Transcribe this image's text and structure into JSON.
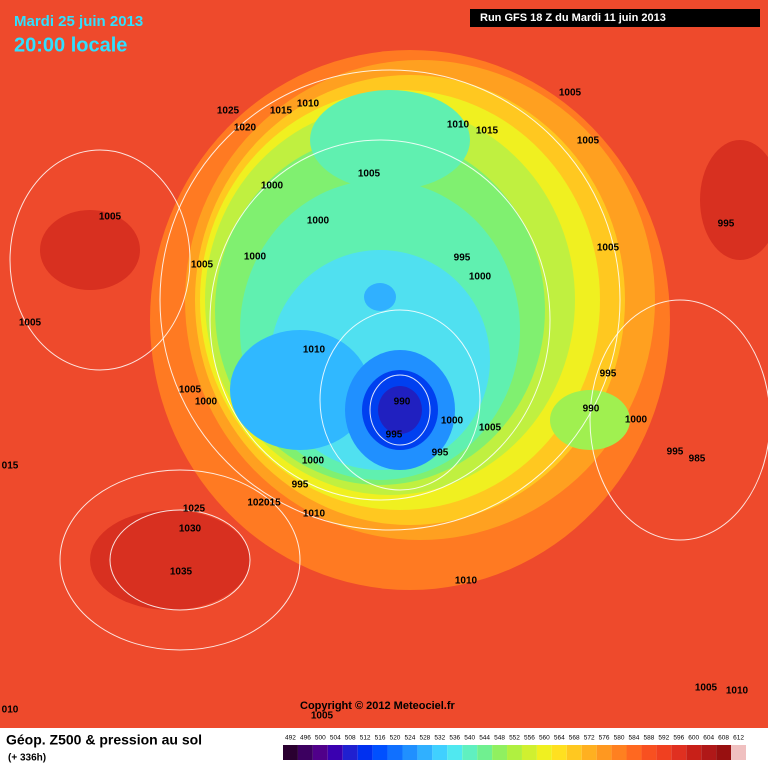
{
  "header": {
    "date": "Mardi 25 juin 2013",
    "time": "20:00 locale",
    "run": "Run GFS 18 Z du Mardi 11 juin 2013"
  },
  "isobar_labels": [
    "1005",
    "1005",
    "1025",
    "1015",
    "1010",
    "1020",
    "1010",
    "1015",
    "1000",
    "1005",
    "1000",
    "1005",
    "995",
    "1005",
    "1005",
    "1000",
    "995",
    "1000",
    "1005",
    "1010",
    "995",
    "1005",
    "1000",
    "990",
    "990",
    "1000",
    "1000",
    "995",
    "1005",
    "995",
    "995",
    "985",
    "1000",
    "015",
    "995",
    "102015",
    "1025",
    "1010",
    "1030",
    "1035",
    "1010",
    "1005",
    "1010",
    "1005",
    "010"
  ],
  "copyright": "Copyright © 2012 Meteociel.fr",
  "footer": {
    "title": "Géop. Z500 & pression au sol",
    "subtitle": "(+ 336h)"
  },
  "legend": {
    "values": [
      492,
      496,
      500,
      504,
      508,
      512,
      516,
      520,
      524,
      528,
      532,
      536,
      540,
      544,
      548,
      552,
      556,
      560,
      564,
      568,
      572,
      576,
      580,
      584,
      588,
      592,
      596,
      600,
      604,
      608,
      612
    ],
    "colors": [
      "#2a0030",
      "#3c0060",
      "#50008a",
      "#3a00b0",
      "#2020d0",
      "#0030f0",
      "#0050ff",
      "#1070ff",
      "#2090ff",
      "#30b0ff",
      "#40d0ff",
      "#50e8f0",
      "#60f0c0",
      "#70f090",
      "#90f060",
      "#b0f040",
      "#d0f030",
      "#f0f020",
      "#ffe020",
      "#ffc820",
      "#ffb020",
      "#ff9820",
      "#ff8020",
      "#ff6820",
      "#f85020",
      "#f04020",
      "#e03020",
      "#c82018",
      "#b01818",
      "#981010",
      "#f0c0c0"
    ]
  }
}
